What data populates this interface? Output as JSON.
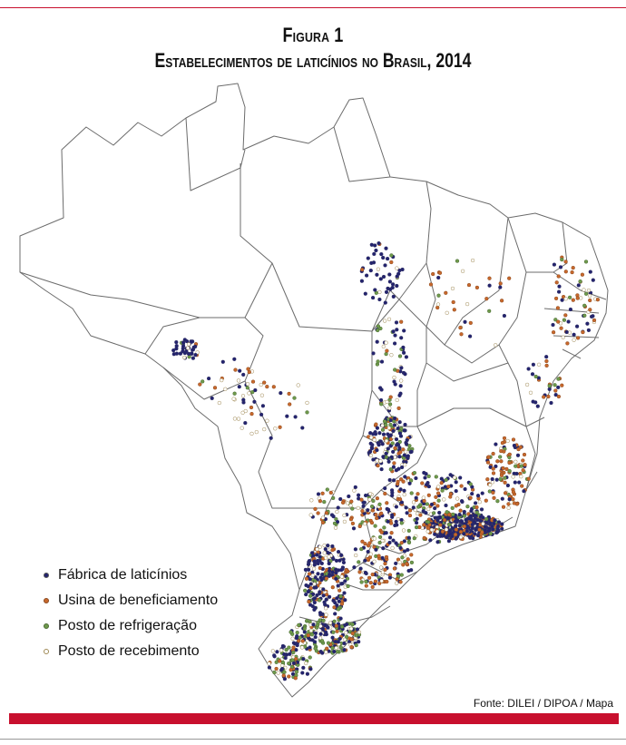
{
  "figure": {
    "label": "Figura 1",
    "title": "Estabelecimentos de laticínios no Brasil, 2014"
  },
  "legend": [
    {
      "key": "fabrica",
      "label": "Fábrica de laticínios",
      "color": "#23236e"
    },
    {
      "key": "usina",
      "label": "Usina de beneficiamento",
      "color": "#c8682c"
    },
    {
      "key": "posto_refrigeracao",
      "label": "Posto de refrigeração",
      "color": "#6f9a4c"
    },
    {
      "key": "posto_recebimento",
      "label": "Posto de recebimento",
      "color": "#c9b48a"
    }
  ],
  "source": "Fonte: DILEI / DIPOA / Mapa",
  "colors": {
    "accent": "#c8102e",
    "border": "#6b6b6b"
  }
}
